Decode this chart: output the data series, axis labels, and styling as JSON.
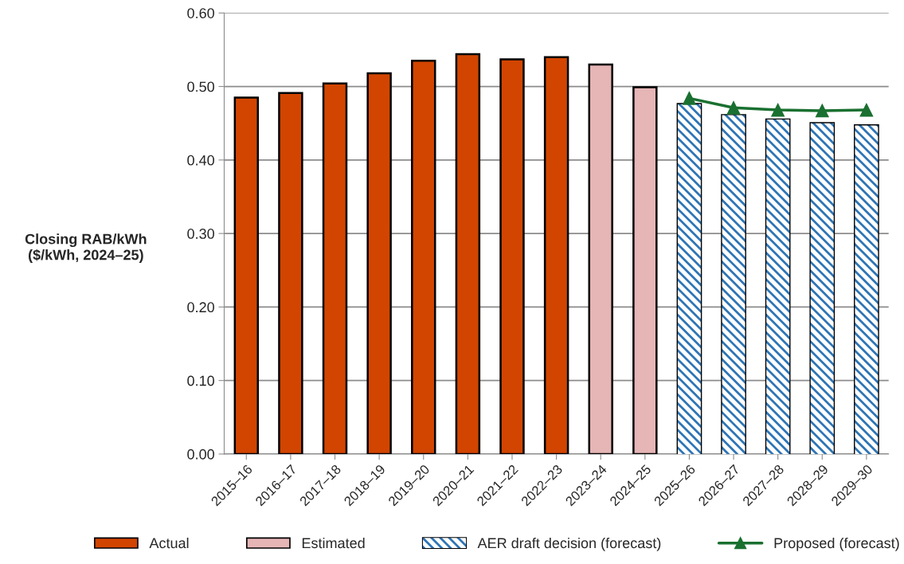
{
  "chart_data": {
    "type": "bar",
    "ylabel": "Closing RAB/kWh\n($/kWh, 2024–25)",
    "categories": [
      "2015–16",
      "2016–17",
      "2017–18",
      "2018–19",
      "2019–20",
      "2020–21",
      "2021–22",
      "2022–23",
      "2023–24",
      "2024–25",
      "2025–26",
      "2026–27",
      "2027–28",
      "2028–29",
      "2029–30"
    ],
    "series": [
      {
        "name": "Actual",
        "color": "#d24500",
        "values": [
          0.485,
          0.491,
          0.504,
          0.518,
          0.535,
          0.544,
          0.537,
          0.54,
          null,
          null,
          null,
          null,
          null,
          null,
          null
        ]
      },
      {
        "name": "Estimated",
        "color": "#e6b5b5",
        "values": [
          null,
          null,
          null,
          null,
          null,
          null,
          null,
          null,
          0.53,
          0.499,
          null,
          null,
          null,
          null,
          null
        ]
      },
      {
        "name": "AER draft decision (forecast)",
        "color": "#2e75b6",
        "values": [
          null,
          null,
          null,
          null,
          null,
          null,
          null,
          null,
          null,
          null,
          0.476,
          0.461,
          0.455,
          0.45,
          0.447
        ]
      },
      {
        "name": "Proposed (forecast)",
        "type": "line",
        "color": "#1a7030",
        "marker": "triangle",
        "values": [
          null,
          null,
          null,
          null,
          null,
          null,
          null,
          null,
          null,
          null,
          0.484,
          0.471,
          0.468,
          0.467,
          0.468
        ]
      }
    ],
    "ylim": [
      0,
      0.6
    ],
    "yticks": [
      {
        "value": 0,
        "label": "0.00"
      },
      {
        "value": 0.1,
        "label": "0.10"
      },
      {
        "value": 0.2,
        "label": "0.20"
      },
      {
        "value": 0.3,
        "label": "0.30"
      },
      {
        "value": 0.4,
        "label": "0.40"
      },
      {
        "value": 0.5,
        "label": "0.50"
      },
      {
        "value": 0.6,
        "label": "0.60"
      }
    ],
    "grid": "y",
    "legend": "bottom"
  }
}
